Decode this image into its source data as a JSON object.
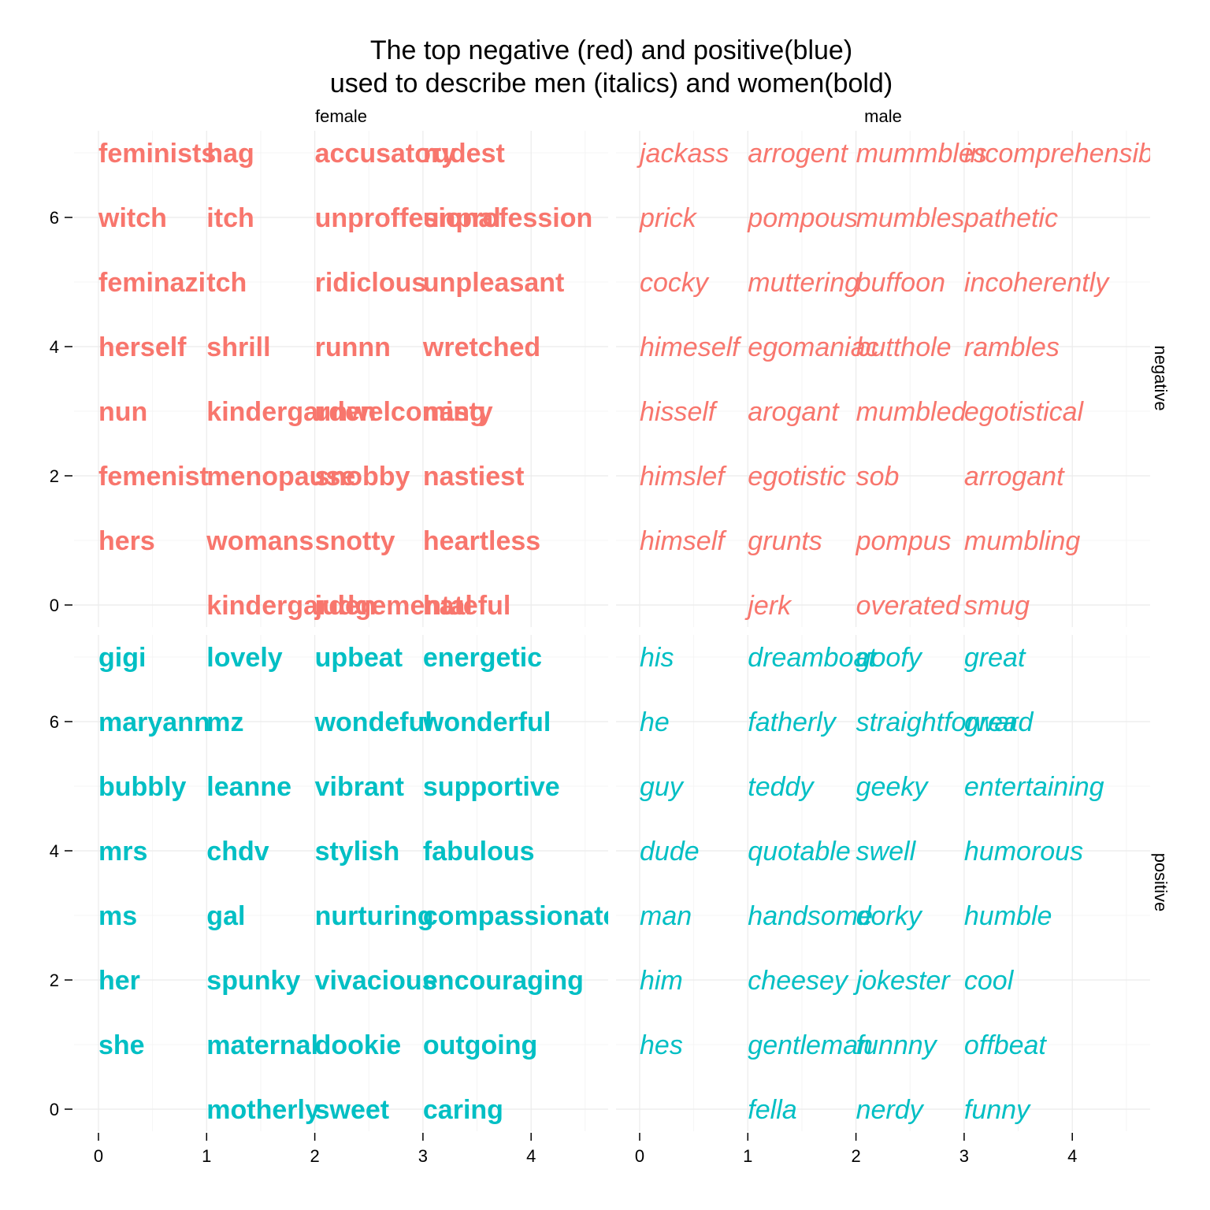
{
  "chart_data": {
    "type": "scatter",
    "title_lines": [
      "The top negative (red) and positive(blue)",
      "used to describe men (italics) and women(bold)"
    ],
    "facet_columns": [
      "female",
      "male"
    ],
    "facet_rows": [
      "negative",
      "positive"
    ],
    "x_ticks": [
      0,
      1,
      2,
      3,
      4
    ],
    "y_ticks": [
      0,
      2,
      4,
      6
    ],
    "xlim": [
      0,
      4.8
    ],
    "ylim": [
      -0.35,
      7.35
    ],
    "colors": {
      "negative": "#F8766D",
      "positive": "#00BFC4"
    },
    "styles": {
      "female": "bold",
      "male": "italic"
    },
    "panels": [
      {
        "column": "female",
        "row": "negative",
        "points": [
          {
            "x": 0,
            "y": 7,
            "label": "feminists"
          },
          {
            "x": 0,
            "y": 6,
            "label": "witch"
          },
          {
            "x": 0,
            "y": 5,
            "label": "feminazi"
          },
          {
            "x": 0,
            "y": 4,
            "label": "herself"
          },
          {
            "x": 0,
            "y": 3,
            "label": "nun"
          },
          {
            "x": 0,
            "y": 2,
            "label": "femenist"
          },
          {
            "x": 0,
            "y": 1,
            "label": "hers"
          },
          {
            "x": 1,
            "y": 7,
            "label": "hag"
          },
          {
            "x": 1,
            "y": 6,
            "label": "itch"
          },
          {
            "x": 1,
            "y": 5,
            "label": "tch"
          },
          {
            "x": 1,
            "y": 4,
            "label": "shrill"
          },
          {
            "x": 1,
            "y": 3,
            "label": "kindergarden"
          },
          {
            "x": 1,
            "y": 2,
            "label": "menopause"
          },
          {
            "x": 1,
            "y": 1,
            "label": "womans"
          },
          {
            "x": 1,
            "y": 0,
            "label": "kindergarden"
          },
          {
            "x": 2,
            "y": 7,
            "label": "accusatory"
          },
          {
            "x": 2,
            "y": 6,
            "label": "unproffesional"
          },
          {
            "x": 2,
            "y": 5,
            "label": "ridiclous"
          },
          {
            "x": 2,
            "y": 4,
            "label": "runnn"
          },
          {
            "x": 2,
            "y": 3,
            "label": "unwelcoming"
          },
          {
            "x": 2,
            "y": 2,
            "label": "snobby"
          },
          {
            "x": 2,
            "y": 1,
            "label": "snotty"
          },
          {
            "x": 2,
            "y": 0,
            "label": "judgemental"
          },
          {
            "x": 3,
            "y": 7,
            "label": "rudest"
          },
          {
            "x": 3,
            "y": 6,
            "label": "unprofession"
          },
          {
            "x": 3,
            "y": 5,
            "label": "unpleasant"
          },
          {
            "x": 3,
            "y": 4,
            "label": "wretched"
          },
          {
            "x": 3,
            "y": 3,
            "label": "nasty"
          },
          {
            "x": 3,
            "y": 2,
            "label": "nastiest"
          },
          {
            "x": 3,
            "y": 1,
            "label": "heartless"
          },
          {
            "x": 3,
            "y": 0,
            "label": "hateful"
          }
        ]
      },
      {
        "column": "male",
        "row": "negative",
        "points": [
          {
            "x": 0,
            "y": 7,
            "label": "jackass"
          },
          {
            "x": 0,
            "y": 6,
            "label": "prick"
          },
          {
            "x": 0,
            "y": 5,
            "label": "cocky"
          },
          {
            "x": 0,
            "y": 4,
            "label": "himeself"
          },
          {
            "x": 0,
            "y": 3,
            "label": "hisself"
          },
          {
            "x": 0,
            "y": 2,
            "label": "himslef"
          },
          {
            "x": 0,
            "y": 1,
            "label": "himself"
          },
          {
            "x": 1,
            "y": 7,
            "label": "arrogent"
          },
          {
            "x": 1,
            "y": 6,
            "label": "pompous"
          },
          {
            "x": 1,
            "y": 5,
            "label": "muttering"
          },
          {
            "x": 1,
            "y": 4,
            "label": "egomaniac"
          },
          {
            "x": 1,
            "y": 3,
            "label": "arogant"
          },
          {
            "x": 1,
            "y": 2,
            "label": "egotistic"
          },
          {
            "x": 1,
            "y": 1,
            "label": "grunts"
          },
          {
            "x": 1,
            "y": 0,
            "label": "jerk"
          },
          {
            "x": 2,
            "y": 7,
            "label": "mummbles"
          },
          {
            "x": 2,
            "y": 6,
            "label": "mumbles"
          },
          {
            "x": 2,
            "y": 5,
            "label": "buffoon"
          },
          {
            "x": 2,
            "y": 4,
            "label": "butthole"
          },
          {
            "x": 2,
            "y": 3,
            "label": "mumbled"
          },
          {
            "x": 2,
            "y": 2,
            "label": "sob"
          },
          {
            "x": 2,
            "y": 1,
            "label": "pompus"
          },
          {
            "x": 2,
            "y": 0,
            "label": "overated"
          },
          {
            "x": 3,
            "y": 7,
            "label": "incomprehensible"
          },
          {
            "x": 3,
            "y": 6,
            "label": "pathetic"
          },
          {
            "x": 3,
            "y": 5,
            "label": "incoherently"
          },
          {
            "x": 3,
            "y": 4,
            "label": "rambles"
          },
          {
            "x": 3,
            "y": 3,
            "label": "egotistical"
          },
          {
            "x": 3,
            "y": 2,
            "label": "arrogant"
          },
          {
            "x": 3,
            "y": 1,
            "label": "mumbling"
          },
          {
            "x": 3,
            "y": 0,
            "label": "smug"
          }
        ]
      },
      {
        "column": "female",
        "row": "positive",
        "points": [
          {
            "x": 0,
            "y": 7,
            "label": "gigi"
          },
          {
            "x": 0,
            "y": 6,
            "label": "maryann"
          },
          {
            "x": 0,
            "y": 5,
            "label": "bubbly"
          },
          {
            "x": 0,
            "y": 4,
            "label": "mrs"
          },
          {
            "x": 0,
            "y": 3,
            "label": "ms"
          },
          {
            "x": 0,
            "y": 2,
            "label": "her"
          },
          {
            "x": 0,
            "y": 1,
            "label": "she"
          },
          {
            "x": 1,
            "y": 7,
            "label": "lovely"
          },
          {
            "x": 1,
            "y": 6,
            "label": "mz"
          },
          {
            "x": 1,
            "y": 5,
            "label": "leanne"
          },
          {
            "x": 1,
            "y": 4,
            "label": "chdv"
          },
          {
            "x": 1,
            "y": 3,
            "label": "gal"
          },
          {
            "x": 1,
            "y": 2,
            "label": "spunky"
          },
          {
            "x": 1,
            "y": 1,
            "label": "maternal"
          },
          {
            "x": 1,
            "y": 0,
            "label": "motherly"
          },
          {
            "x": 2,
            "y": 7,
            "label": "upbeat"
          },
          {
            "x": 2,
            "y": 6,
            "label": "wondeful"
          },
          {
            "x": 2,
            "y": 5,
            "label": "vibrant"
          },
          {
            "x": 2,
            "y": 4,
            "label": "stylish"
          },
          {
            "x": 2,
            "y": 3,
            "label": "nurturing"
          },
          {
            "x": 2,
            "y": 2,
            "label": "vivacious"
          },
          {
            "x": 2,
            "y": 1,
            "label": "dookie"
          },
          {
            "x": 2,
            "y": 0,
            "label": "sweet"
          },
          {
            "x": 3,
            "y": 7,
            "label": "energetic"
          },
          {
            "x": 3,
            "y": 6,
            "label": "wonderful"
          },
          {
            "x": 3,
            "y": 5,
            "label": "supportive"
          },
          {
            "x": 3,
            "y": 4,
            "label": "fabulous"
          },
          {
            "x": 3,
            "y": 3,
            "label": "compassionate"
          },
          {
            "x": 3,
            "y": 2,
            "label": "encouraging"
          },
          {
            "x": 3,
            "y": 1,
            "label": "outgoing"
          },
          {
            "x": 3,
            "y": 0,
            "label": "caring"
          }
        ]
      },
      {
        "column": "male",
        "row": "positive",
        "points": [
          {
            "x": 0,
            "y": 7,
            "label": "his"
          },
          {
            "x": 0,
            "y": 6,
            "label": "he"
          },
          {
            "x": 0,
            "y": 5,
            "label": "guy"
          },
          {
            "x": 0,
            "y": 4,
            "label": "dude"
          },
          {
            "x": 0,
            "y": 3,
            "label": "man"
          },
          {
            "x": 0,
            "y": 2,
            "label": "him"
          },
          {
            "x": 0,
            "y": 1,
            "label": "hes"
          },
          {
            "x": 1,
            "y": 7,
            "label": "dreamboat"
          },
          {
            "x": 1,
            "y": 6,
            "label": "fatherly"
          },
          {
            "x": 1,
            "y": 5,
            "label": "teddy"
          },
          {
            "x": 1,
            "y": 4,
            "label": "quotable"
          },
          {
            "x": 1,
            "y": 3,
            "label": "handsome"
          },
          {
            "x": 1,
            "y": 2,
            "label": "cheesey"
          },
          {
            "x": 1,
            "y": 1,
            "label": "gentleman"
          },
          {
            "x": 1,
            "y": 0,
            "label": "fella"
          },
          {
            "x": 2,
            "y": 7,
            "label": "goofy"
          },
          {
            "x": 2,
            "y": 6,
            "label": "straightforward"
          },
          {
            "x": 2,
            "y": 5,
            "label": "geeky"
          },
          {
            "x": 2,
            "y": 4,
            "label": "swell"
          },
          {
            "x": 2,
            "y": 3,
            "label": "dorky"
          },
          {
            "x": 2,
            "y": 2,
            "label": "jokester"
          },
          {
            "x": 2,
            "y": 1,
            "label": "funnny"
          },
          {
            "x": 2,
            "y": 0,
            "label": "nerdy"
          },
          {
            "x": 3,
            "y": 7,
            "label": "great"
          },
          {
            "x": 3,
            "y": 6,
            "label": "grea"
          },
          {
            "x": 3,
            "y": 5,
            "label": "entertaining"
          },
          {
            "x": 3,
            "y": 4,
            "label": "humorous"
          },
          {
            "x": 3,
            "y": 3,
            "label": "humble"
          },
          {
            "x": 3,
            "y": 2,
            "label": "cool"
          },
          {
            "x": 3,
            "y": 1,
            "label": "offbeat"
          },
          {
            "x": 3,
            "y": 0,
            "label": "funny"
          }
        ]
      }
    ]
  }
}
